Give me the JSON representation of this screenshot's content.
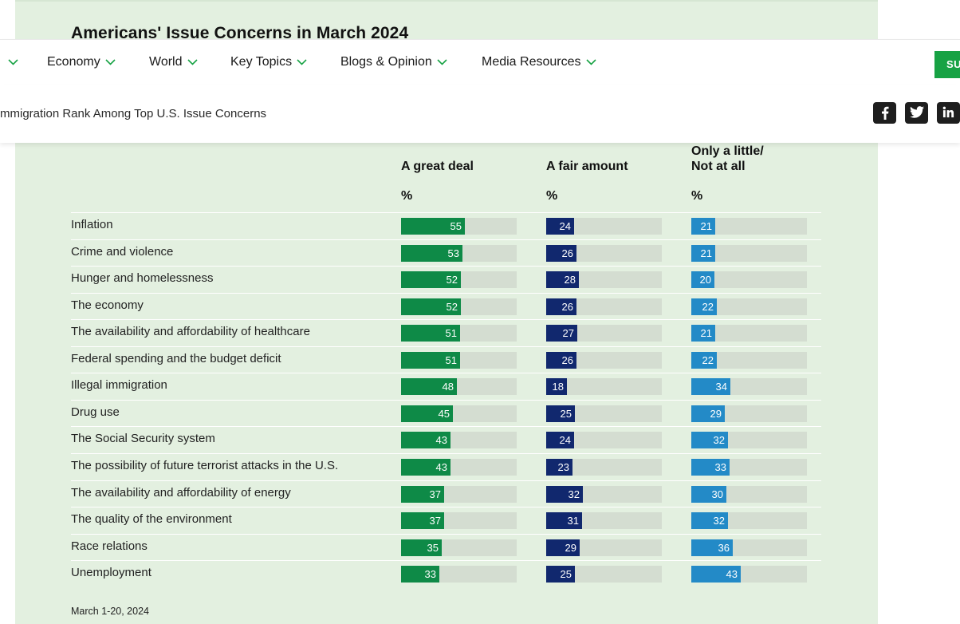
{
  "colors": {
    "great_deal": "#0e8a47",
    "fair_amount": "#11286e",
    "little_none": "#238ac7",
    "track": "#d4ddd1",
    "subscribe": "#17a244"
  },
  "header": {
    "title": "Americans' Issue Concerns in March 2024"
  },
  "nav": {
    "items": [
      {
        "label": "Economy",
        "icon": "chevron-down-icon"
      },
      {
        "label": "World",
        "icon": "chevron-down-icon"
      },
      {
        "label": "Key Topics",
        "icon": "chevron-down-icon"
      },
      {
        "label": "Blogs & Opinion",
        "icon": "chevron-down-icon"
      },
      {
        "label": "Media Resources",
        "icon": "chevron-down-icon"
      }
    ],
    "subscribe_label": "SU"
  },
  "subheader": {
    "breadcrumb": "mmigration Rank Among Top U.S. Issue Concerns",
    "share_icons": [
      "facebook-icon",
      "twitter-icon",
      "linkedin-icon"
    ]
  },
  "chart_data": {
    "type": "bar",
    "title": "Americans' Issue Concerns in March 2024",
    "columns": [
      {
        "key": "great_deal",
        "line1": "",
        "line2": "A great deal",
        "unit": "%"
      },
      {
        "key": "fair_amount",
        "line1": "",
        "line2": "A fair amount",
        "unit": "%"
      },
      {
        "key": "little_none",
        "line1": "Only a little/",
        "line2": "Not at all",
        "unit": "%"
      }
    ],
    "scale_max": 100,
    "rows": [
      {
        "label": "Inflation",
        "values": [
          55,
          24,
          21
        ]
      },
      {
        "label": "Crime and violence",
        "values": [
          53,
          26,
          21
        ]
      },
      {
        "label": "Hunger and homelessness",
        "values": [
          52,
          28,
          20
        ]
      },
      {
        "label": "The economy",
        "values": [
          52,
          26,
          22
        ]
      },
      {
        "label": "The availability and affordability of healthcare",
        "values": [
          51,
          27,
          21
        ]
      },
      {
        "label": "Federal spending and the budget deficit",
        "values": [
          51,
          26,
          22
        ]
      },
      {
        "label": "Illegal immigration",
        "values": [
          48,
          18,
          34
        ]
      },
      {
        "label": "Drug use",
        "values": [
          45,
          25,
          29
        ]
      },
      {
        "label": "The Social Security system",
        "values": [
          43,
          24,
          32
        ]
      },
      {
        "label": "The possibility of future terrorist attacks in the U.S.",
        "values": [
          43,
          23,
          33
        ]
      },
      {
        "label": "The availability and affordability of energy",
        "values": [
          37,
          32,
          30
        ]
      },
      {
        "label": "The quality of the environment",
        "values": [
          37,
          31,
          32
        ]
      },
      {
        "label": "Race relations",
        "values": [
          35,
          29,
          36
        ]
      },
      {
        "label": "Unemployment",
        "values": [
          33,
          25,
          43
        ]
      }
    ],
    "footnote": "March 1-20, 2024"
  }
}
